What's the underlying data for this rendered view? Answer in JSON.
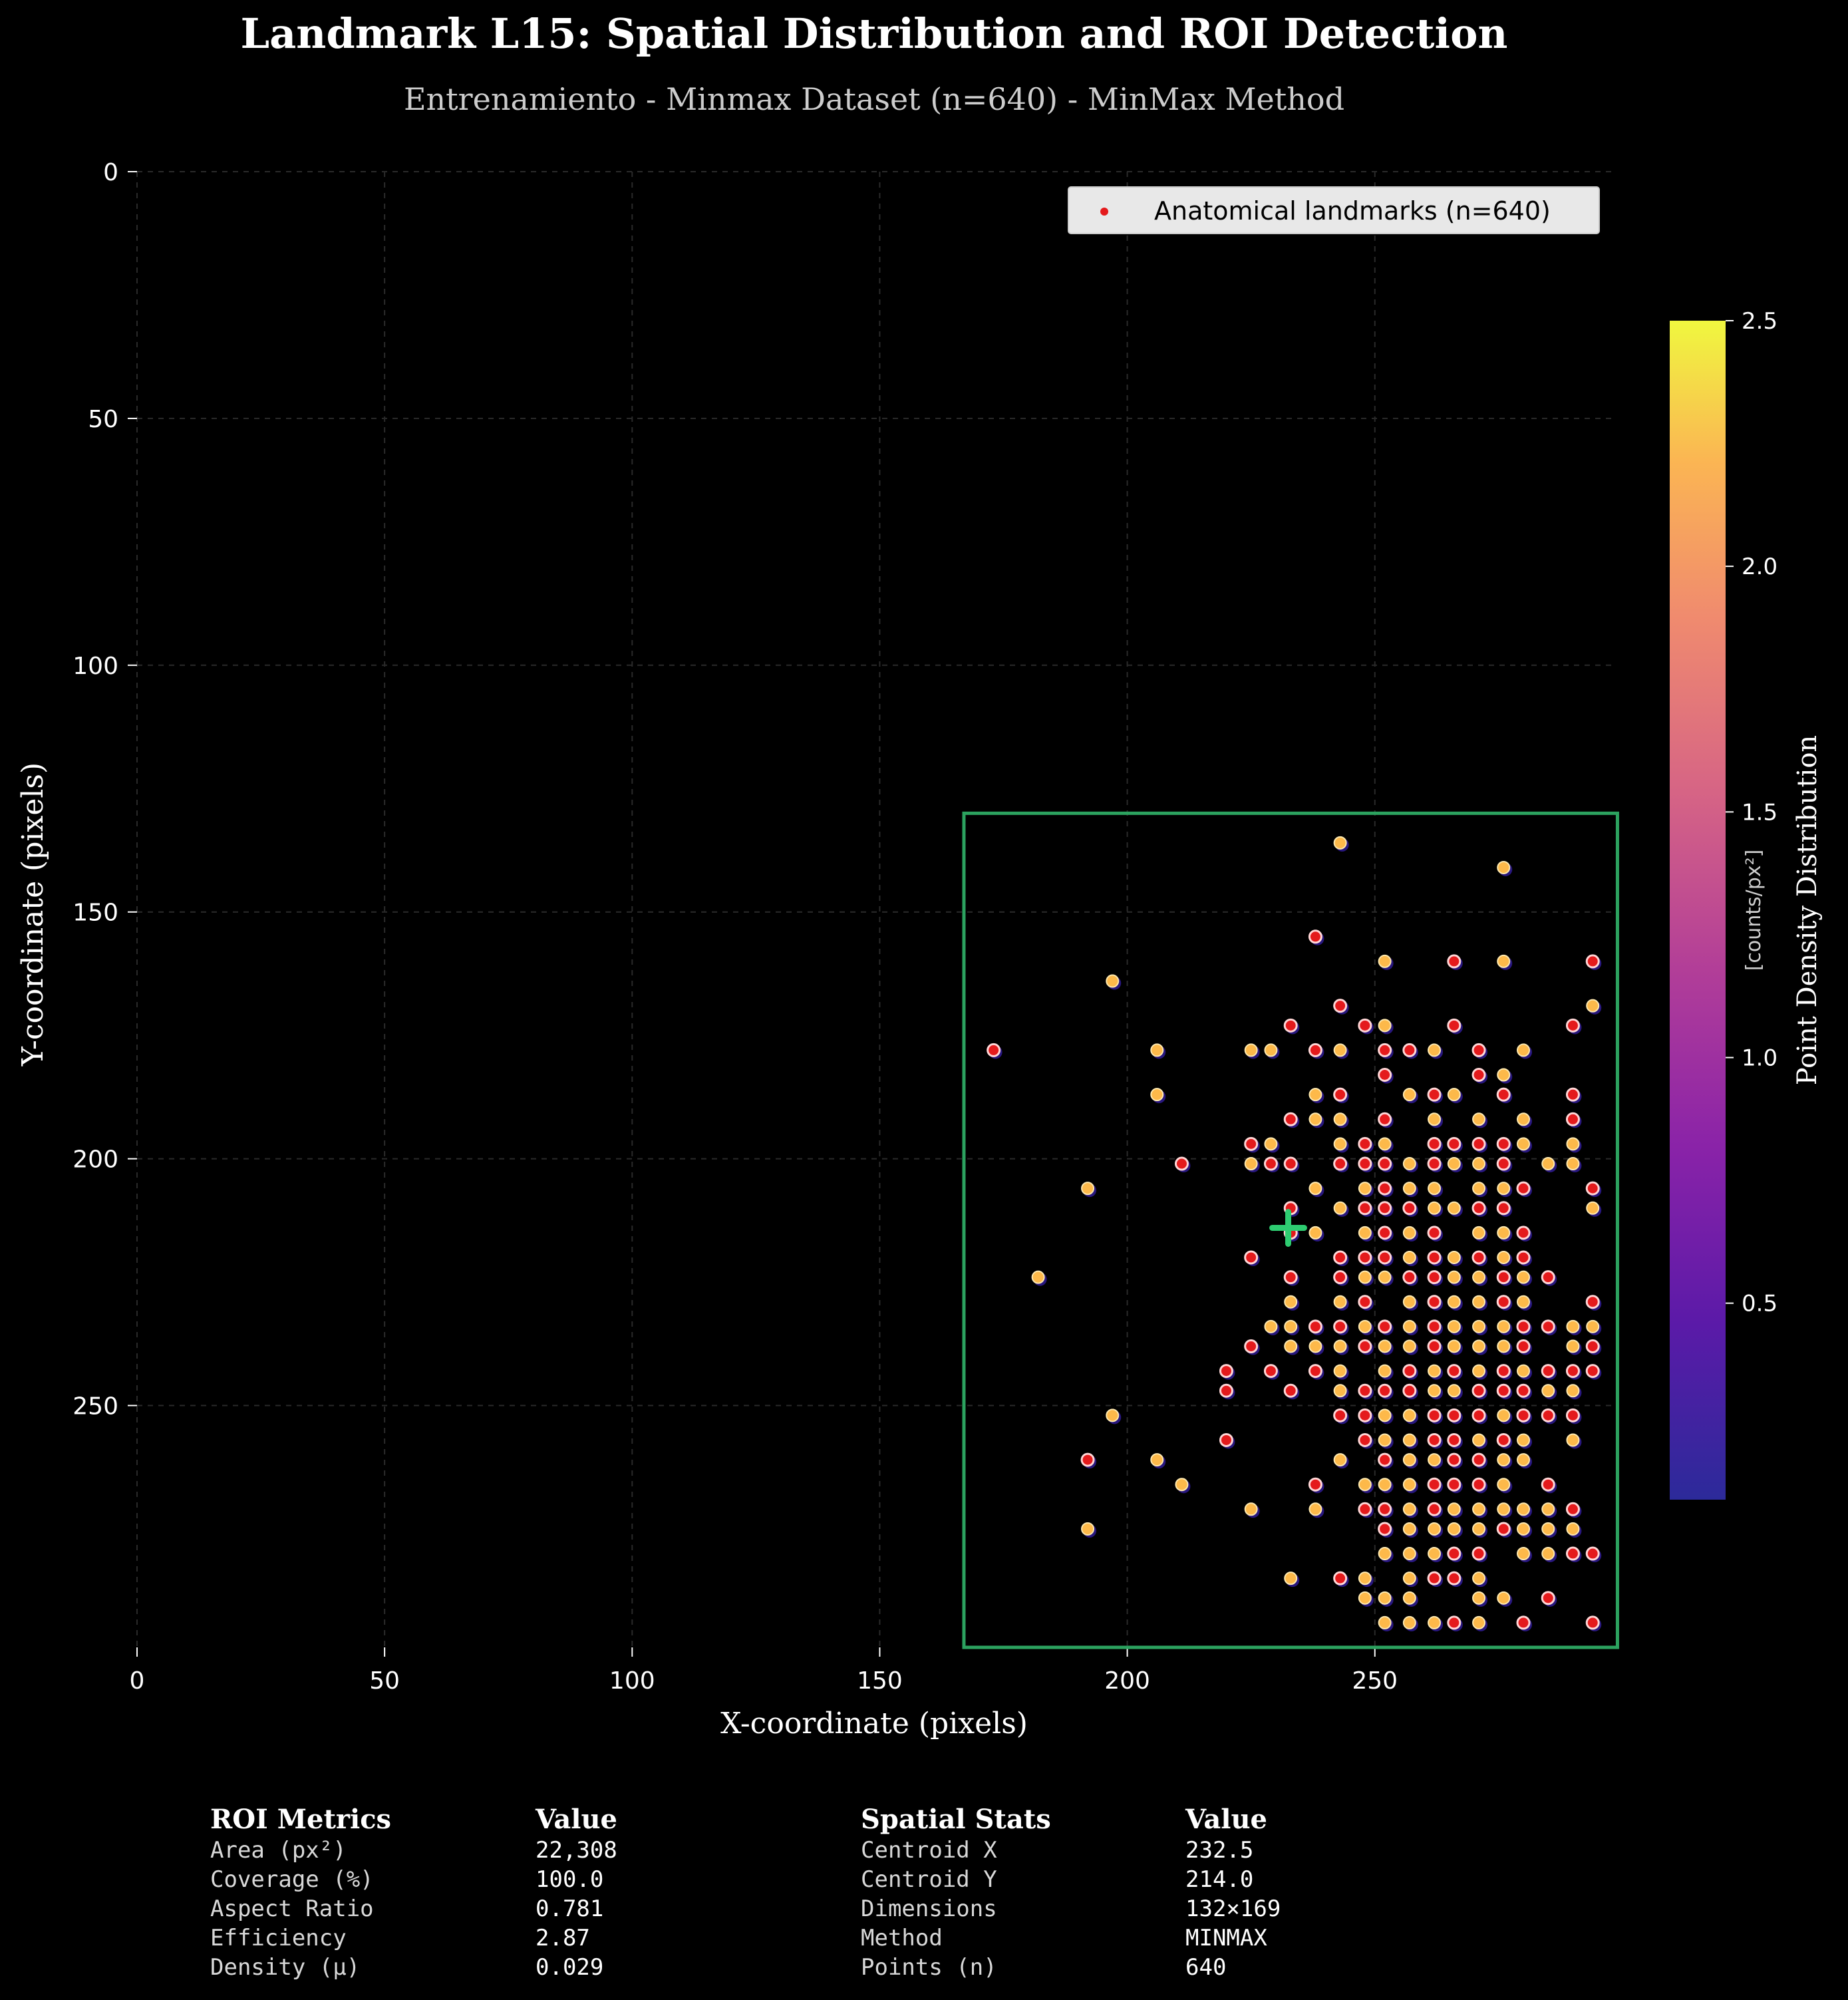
{
  "header": {
    "title": "Landmark L15: Spatial Distribution and ROI Detection",
    "subtitle": "Entrenamiento - Minmax Dataset (n=640) - MinMax Method"
  },
  "chart_data": {
    "type": "scatter",
    "title": "Landmark L15: Spatial Distribution and ROI Detection",
    "subtitle": "Entrenamiento - Minmax Dataset (n=640) - MinMax Method",
    "xlabel": "X-coordinate (pixels)",
    "ylabel": "Y-coordinate (pixels)",
    "xlim": [
      0,
      298
    ],
    "ylim": [
      299,
      0
    ],
    "y_inverted": true,
    "xticks": [
      "0",
      "50",
      "100",
      "150",
      "200",
      "250"
    ],
    "yticks": [
      "0",
      "50",
      "100",
      "150",
      "200",
      "250"
    ],
    "xtick_values": [
      0,
      50,
      100,
      150,
      200,
      250
    ],
    "ytick_values": [
      0,
      50,
      100,
      150,
      200,
      250
    ],
    "grid": true,
    "legend": {
      "placement": "upper-right",
      "label": "Anatomical landmarks (n=640)"
    },
    "colorbar": {
      "label": "Point Density Distribution",
      "unit_label": "[counts/px²]",
      "range": [
        0.1,
        2.5
      ],
      "ticks": [
        "0.5",
        "1.0",
        "1.5",
        "2.0",
        "2.5"
      ],
      "tick_values": [
        0.5,
        1.0,
        1.5,
        2.0,
        2.5
      ],
      "colormap": "plasma"
    },
    "roi": {
      "x_min": 167,
      "x_max": 299,
      "y_min": 130,
      "y_max": 299,
      "color": "#2ca25f"
    },
    "centroid": {
      "x": 232.5,
      "y": 214.0,
      "color": "#2ecc71"
    },
    "point_colors": {
      "face": "#e41a1c",
      "edge_high": "#fdb94a",
      "shadow": "#2c1a8c"
    },
    "points": [
      [
        243,
        136,
        1
      ],
      [
        276,
        141,
        1
      ],
      [
        238,
        155,
        0
      ],
      [
        252,
        160,
        1
      ],
      [
        266,
        160,
        0
      ],
      [
        276,
        160,
        1
      ],
      [
        294,
        160,
        0
      ],
      [
        197,
        164,
        1
      ],
      [
        243,
        169,
        0
      ],
      [
        294,
        169,
        1
      ],
      [
        233,
        173,
        0
      ],
      [
        248,
        173,
        0
      ],
      [
        252,
        173,
        1
      ],
      [
        266,
        173,
        0
      ],
      [
        290,
        173,
        0
      ],
      [
        173,
        178,
        0
      ],
      [
        206,
        178,
        1
      ],
      [
        225,
        178,
        1
      ],
      [
        229,
        178,
        1
      ],
      [
        238,
        178,
        0
      ],
      [
        243,
        178,
        1
      ],
      [
        252,
        178,
        0
      ],
      [
        257,
        178,
        0
      ],
      [
        262,
        178,
        1
      ],
      [
        271,
        178,
        0
      ],
      [
        280,
        178,
        1
      ],
      [
        252,
        183,
        0
      ],
      [
        271,
        183,
        0
      ],
      [
        276,
        183,
        1
      ],
      [
        206,
        187,
        1
      ],
      [
        238,
        187,
        1
      ],
      [
        243,
        187,
        0
      ],
      [
        257,
        187,
        1
      ],
      [
        262,
        187,
        0
      ],
      [
        266,
        187,
        1
      ],
      [
        276,
        187,
        0
      ],
      [
        290,
        187,
        0
      ],
      [
        233,
        192,
        0
      ],
      [
        238,
        192,
        1
      ],
      [
        243,
        192,
        1
      ],
      [
        252,
        192,
        0
      ],
      [
        262,
        192,
        1
      ],
      [
        271,
        192,
        1
      ],
      [
        280,
        192,
        1
      ],
      [
        290,
        192,
        0
      ],
      [
        225,
        197,
        0
      ],
      [
        229,
        197,
        1
      ],
      [
        243,
        197,
        1
      ],
      [
        248,
        197,
        0
      ],
      [
        252,
        197,
        1
      ],
      [
        262,
        197,
        0
      ],
      [
        266,
        197,
        0
      ],
      [
        271,
        197,
        0
      ],
      [
        276,
        197,
        0
      ],
      [
        280,
        197,
        1
      ],
      [
        290,
        197,
        1
      ],
      [
        211,
        201,
        0
      ],
      [
        225,
        201,
        1
      ],
      [
        229,
        201,
        0
      ],
      [
        233,
        201,
        0
      ],
      [
        243,
        201,
        0
      ],
      [
        248,
        201,
        0
      ],
      [
        252,
        201,
        0
      ],
      [
        257,
        201,
        1
      ],
      [
        262,
        201,
        0
      ],
      [
        266,
        201,
        1
      ],
      [
        271,
        201,
        1
      ],
      [
        276,
        201,
        0
      ],
      [
        285,
        201,
        1
      ],
      [
        290,
        201,
        1
      ],
      [
        192,
        206,
        1
      ],
      [
        238,
        206,
        1
      ],
      [
        248,
        206,
        1
      ],
      [
        252,
        206,
        0
      ],
      [
        257,
        206,
        1
      ],
      [
        262,
        206,
        1
      ],
      [
        271,
        206,
        1
      ],
      [
        276,
        206,
        1
      ],
      [
        280,
        206,
        0
      ],
      [
        294,
        206,
        0
      ],
      [
        233,
        210,
        0
      ],
      [
        243,
        210,
        1
      ],
      [
        248,
        210,
        0
      ],
      [
        252,
        210,
        0
      ],
      [
        257,
        210,
        0
      ],
      [
        262,
        210,
        1
      ],
      [
        266,
        210,
        1
      ],
      [
        271,
        210,
        0
      ],
      [
        276,
        210,
        0
      ],
      [
        294,
        210,
        1
      ],
      [
        233,
        215,
        0
      ],
      [
        238,
        215,
        1
      ],
      [
        248,
        215,
        1
      ],
      [
        252,
        215,
        0
      ],
      [
        257,
        215,
        1
      ],
      [
        262,
        215,
        0
      ],
      [
        271,
        215,
        1
      ],
      [
        276,
        215,
        1
      ],
      [
        280,
        215,
        0
      ],
      [
        225,
        220,
        0
      ],
      [
        243,
        220,
        0
      ],
      [
        248,
        220,
        0
      ],
      [
        252,
        220,
        0
      ],
      [
        257,
        220,
        1
      ],
      [
        262,
        220,
        0
      ],
      [
        266,
        220,
        1
      ],
      [
        271,
        220,
        0
      ],
      [
        276,
        220,
        1
      ],
      [
        280,
        220,
        0
      ],
      [
        182,
        224,
        1
      ],
      [
        233,
        224,
        0
      ],
      [
        243,
        224,
        0
      ],
      [
        248,
        224,
        1
      ],
      [
        252,
        224,
        1
      ],
      [
        257,
        224,
        0
      ],
      [
        262,
        224,
        0
      ],
      [
        266,
        224,
        1
      ],
      [
        271,
        224,
        1
      ],
      [
        276,
        224,
        0
      ],
      [
        280,
        224,
        1
      ],
      [
        285,
        224,
        0
      ],
      [
        233,
        229,
        1
      ],
      [
        243,
        229,
        1
      ],
      [
        248,
        229,
        0
      ],
      [
        257,
        229,
        1
      ],
      [
        262,
        229,
        0
      ],
      [
        266,
        229,
        1
      ],
      [
        271,
        229,
        1
      ],
      [
        276,
        229,
        0
      ],
      [
        280,
        229,
        1
      ],
      [
        294,
        229,
        0
      ],
      [
        229,
        234,
        1
      ],
      [
        233,
        234,
        1
      ],
      [
        238,
        234,
        0
      ],
      [
        243,
        234,
        0
      ],
      [
        248,
        234,
        1
      ],
      [
        252,
        234,
        0
      ],
      [
        257,
        234,
        1
      ],
      [
        262,
        234,
        0
      ],
      [
        266,
        234,
        1
      ],
      [
        271,
        234,
        1
      ],
      [
        276,
        234,
        1
      ],
      [
        280,
        234,
        0
      ],
      [
        285,
        234,
        0
      ],
      [
        290,
        234,
        1
      ],
      [
        294,
        234,
        1
      ],
      [
        225,
        238,
        0
      ],
      [
        233,
        238,
        1
      ],
      [
        238,
        238,
        1
      ],
      [
        243,
        238,
        1
      ],
      [
        248,
        238,
        0
      ],
      [
        252,
        238,
        1
      ],
      [
        257,
        238,
        1
      ],
      [
        262,
        238,
        0
      ],
      [
        266,
        238,
        1
      ],
      [
        271,
        238,
        1
      ],
      [
        276,
        238,
        1
      ],
      [
        280,
        238,
        0
      ],
      [
        290,
        238,
        1
      ],
      [
        294,
        238,
        0
      ],
      [
        220,
        243,
        0
      ],
      [
        229,
        243,
        0
      ],
      [
        238,
        243,
        0
      ],
      [
        243,
        243,
        1
      ],
      [
        252,
        243,
        1
      ],
      [
        257,
        243,
        0
      ],
      [
        262,
        243,
        1
      ],
      [
        266,
        243,
        0
      ],
      [
        271,
        243,
        1
      ],
      [
        276,
        243,
        0
      ],
      [
        280,
        243,
        1
      ],
      [
        285,
        243,
        0
      ],
      [
        290,
        243,
        0
      ],
      [
        294,
        243,
        0
      ],
      [
        220,
        247,
        0
      ],
      [
        233,
        247,
        0
      ],
      [
        243,
        247,
        1
      ],
      [
        248,
        247,
        0
      ],
      [
        252,
        247,
        0
      ],
      [
        257,
        247,
        0
      ],
      [
        262,
        247,
        1
      ],
      [
        266,
        247,
        1
      ],
      [
        271,
        247,
        0
      ],
      [
        276,
        247,
        0
      ],
      [
        280,
        247,
        0
      ],
      [
        285,
        247,
        1
      ],
      [
        290,
        247,
        1
      ],
      [
        197,
        252,
        1
      ],
      [
        243,
        252,
        0
      ],
      [
        248,
        252,
        0
      ],
      [
        252,
        252,
        1
      ],
      [
        257,
        252,
        1
      ],
      [
        262,
        252,
        0
      ],
      [
        266,
        252,
        0
      ],
      [
        271,
        252,
        0
      ],
      [
        276,
        252,
        1
      ],
      [
        280,
        252,
        0
      ],
      [
        285,
        252,
        0
      ],
      [
        290,
        252,
        0
      ],
      [
        220,
        257,
        0
      ],
      [
        248,
        257,
        0
      ],
      [
        252,
        257,
        1
      ],
      [
        257,
        257,
        1
      ],
      [
        262,
        257,
        0
      ],
      [
        266,
        257,
        0
      ],
      [
        271,
        257,
        1
      ],
      [
        276,
        257,
        0
      ],
      [
        280,
        257,
        1
      ],
      [
        290,
        257,
        1
      ],
      [
        192,
        261,
        0
      ],
      [
        206,
        261,
        1
      ],
      [
        243,
        261,
        1
      ],
      [
        252,
        261,
        0
      ],
      [
        257,
        261,
        1
      ],
      [
        262,
        261,
        1
      ],
      [
        266,
        261,
        0
      ],
      [
        271,
        261,
        0
      ],
      [
        276,
        261,
        1
      ],
      [
        280,
        261,
        1
      ],
      [
        211,
        266,
        1
      ],
      [
        238,
        266,
        0
      ],
      [
        248,
        266,
        1
      ],
      [
        252,
        266,
        1
      ],
      [
        257,
        266,
        1
      ],
      [
        262,
        266,
        0
      ],
      [
        266,
        266,
        0
      ],
      [
        271,
        266,
        0
      ],
      [
        276,
        266,
        1
      ],
      [
        285,
        266,
        0
      ],
      [
        225,
        271,
        1
      ],
      [
        238,
        271,
        1
      ],
      [
        248,
        271,
        0
      ],
      [
        252,
        271,
        0
      ],
      [
        257,
        271,
        1
      ],
      [
        262,
        271,
        0
      ],
      [
        266,
        271,
        1
      ],
      [
        271,
        271,
        1
      ],
      [
        276,
        271,
        1
      ],
      [
        280,
        271,
        1
      ],
      [
        285,
        271,
        1
      ],
      [
        290,
        271,
        0
      ],
      [
        192,
        275,
        1
      ],
      [
        252,
        275,
        0
      ],
      [
        257,
        275,
        1
      ],
      [
        262,
        275,
        1
      ],
      [
        266,
        275,
        1
      ],
      [
        271,
        275,
        1
      ],
      [
        276,
        275,
        0
      ],
      [
        280,
        275,
        1
      ],
      [
        285,
        275,
        1
      ],
      [
        290,
        275,
        1
      ],
      [
        252,
        280,
        1
      ],
      [
        257,
        280,
        1
      ],
      [
        262,
        280,
        1
      ],
      [
        266,
        280,
        0
      ],
      [
        271,
        280,
        0
      ],
      [
        280,
        280,
        1
      ],
      [
        285,
        280,
        1
      ],
      [
        290,
        280,
        0
      ],
      [
        294,
        280,
        0
      ],
      [
        233,
        285,
        1
      ],
      [
        243,
        285,
        0
      ],
      [
        248,
        285,
        1
      ],
      [
        257,
        285,
        1
      ],
      [
        262,
        285,
        0
      ],
      [
        266,
        285,
        0
      ],
      [
        271,
        285,
        1
      ],
      [
        248,
        289,
        1
      ],
      [
        252,
        289,
        1
      ],
      [
        257,
        289,
        1
      ],
      [
        271,
        289,
        1
      ],
      [
        276,
        289,
        1
      ],
      [
        285,
        289,
        0
      ],
      [
        252,
        294,
        1
      ],
      [
        257,
        294,
        1
      ],
      [
        262,
        294,
        1
      ],
      [
        266,
        294,
        0
      ],
      [
        271,
        294,
        1
      ],
      [
        280,
        294,
        0
      ],
      [
        294,
        294,
        0
      ]
    ]
  },
  "metrics": {
    "left": {
      "header_label": "ROI Metrics",
      "header_value": "Value",
      "rows": [
        {
          "label": "Area (px²)",
          "value": "22,308"
        },
        {
          "label": "Coverage (%)",
          "value": "100.0"
        },
        {
          "label": "Aspect Ratio",
          "value": "0.781"
        },
        {
          "label": "Efficiency",
          "value": "2.87"
        },
        {
          "label": "Density (μ)",
          "value": "0.029"
        }
      ]
    },
    "right": {
      "header_label": "Spatial Stats",
      "header_value": "Value",
      "rows": [
        {
          "label": "Centroid X",
          "value": "232.5"
        },
        {
          "label": "Centroid Y",
          "value": "214.0"
        },
        {
          "label": "Dimensions",
          "value": "132×169"
        },
        {
          "label": "Method",
          "value": "MINMAX"
        },
        {
          "label": "Points (n)",
          "value": "640"
        }
      ]
    }
  }
}
